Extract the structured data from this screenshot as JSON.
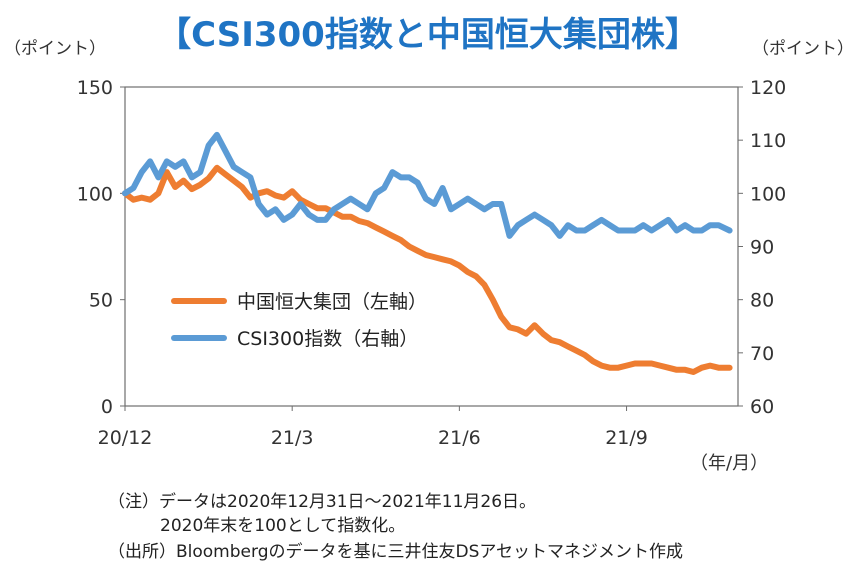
{
  "chart_data": {
    "type": "line",
    "title": "【CSI300指数と中国恒大集団株】",
    "left_axis": {
      "unit": "（ポイント）",
      "ticks": [
        0,
        50,
        100,
        150
      ],
      "ylim": [
        0,
        150
      ]
    },
    "right_axis": {
      "unit": "（ポイント）",
      "ticks": [
        60,
        70,
        80,
        90,
        100,
        110,
        120
      ],
      "ylim": [
        60,
        120
      ]
    },
    "x_axis": {
      "unit": "（年/月）",
      "ticks": [
        "20/12",
        "21/3",
        "21/6",
        "21/9"
      ],
      "tick_index": [
        0,
        3,
        6,
        9
      ],
      "xlim": [
        0,
        11
      ]
    },
    "series": [
      {
        "name": "中国恒大集団（左軸）",
        "axis": "left",
        "color": "#ee7d31",
        "x": [
          0,
          0.15,
          0.3,
          0.45,
          0.6,
          0.75,
          0.9,
          1.05,
          1.2,
          1.35,
          1.5,
          1.65,
          1.8,
          1.95,
          2.1,
          2.25,
          2.4,
          2.55,
          2.7,
          2.85,
          3.0,
          3.15,
          3.3,
          3.45,
          3.6,
          3.75,
          3.9,
          4.05,
          4.2,
          4.35,
          4.5,
          4.65,
          4.8,
          4.95,
          5.1,
          5.25,
          5.4,
          5.55,
          5.7,
          5.85,
          6.0,
          6.15,
          6.3,
          6.45,
          6.6,
          6.75,
          6.9,
          7.05,
          7.2,
          7.35,
          7.5,
          7.65,
          7.8,
          7.95,
          8.1,
          8.25,
          8.4,
          8.55,
          8.7,
          8.85,
          9.0,
          9.15,
          9.3,
          9.45,
          9.6,
          9.75,
          9.9,
          10.05,
          10.2,
          10.35,
          10.5,
          10.65,
          10.85
        ],
        "y": [
          100,
          97,
          98,
          97,
          100,
          110,
          103,
          106,
          102,
          104,
          107,
          112,
          109,
          106,
          103,
          98,
          100,
          101,
          99,
          98,
          101,
          97,
          95,
          93,
          93,
          91,
          89,
          89,
          87,
          86,
          84,
          82,
          80,
          78,
          75,
          73,
          71,
          70,
          69,
          68,
          66,
          63,
          61,
          57,
          50,
          42,
          37,
          36,
          34,
          38,
          34,
          31,
          30,
          28,
          26,
          24,
          21,
          19,
          18,
          18,
          19,
          20,
          20,
          20,
          19,
          18,
          17,
          17,
          16,
          18,
          19,
          18,
          18
        ]
      },
      {
        "name": "CSI300指数（右軸）",
        "axis": "right",
        "color": "#5b9bd5",
        "x": [
          0,
          0.15,
          0.3,
          0.45,
          0.6,
          0.75,
          0.9,
          1.05,
          1.2,
          1.35,
          1.5,
          1.65,
          1.8,
          1.95,
          2.1,
          2.25,
          2.4,
          2.55,
          2.7,
          2.85,
          3.0,
          3.15,
          3.3,
          3.45,
          3.6,
          3.75,
          3.9,
          4.05,
          4.2,
          4.35,
          4.5,
          4.65,
          4.8,
          4.95,
          5.1,
          5.25,
          5.4,
          5.55,
          5.7,
          5.85,
          6.0,
          6.15,
          6.3,
          6.45,
          6.6,
          6.75,
          6.9,
          7.05,
          7.2,
          7.35,
          7.5,
          7.65,
          7.8,
          7.95,
          8.1,
          8.25,
          8.4,
          8.55,
          8.7,
          8.85,
          9.0,
          9.15,
          9.3,
          9.45,
          9.6,
          9.75,
          9.9,
          10.05,
          10.2,
          10.35,
          10.5,
          10.65,
          10.85
        ],
        "y": [
          100,
          101,
          104,
          106,
          103,
          106,
          105,
          106,
          103,
          104,
          109,
          111,
          108,
          105,
          104,
          103,
          98,
          96,
          97,
          95,
          96,
          98,
          96,
          95,
          95,
          97,
          98,
          99,
          98,
          97,
          100,
          101,
          104,
          103,
          103,
          102,
          99,
          98,
          101,
          97,
          98,
          99,
          98,
          97,
          98,
          98,
          92,
          94,
          95,
          96,
          95,
          94,
          92,
          94,
          93,
          93,
          94,
          95,
          94,
          93,
          93,
          93,
          94,
          93,
          94,
          95,
          93,
          94,
          93,
          93,
          94,
          94,
          93
        ]
      }
    ]
  },
  "notes": {
    "line1": "（注）データは2020年12月31日～2021年11月26日。",
    "line2": "2020年末を100として指数化。",
    "line3": "（出所）Bloombergのデータを基に三井住友DSアセットマネジメント作成"
  }
}
